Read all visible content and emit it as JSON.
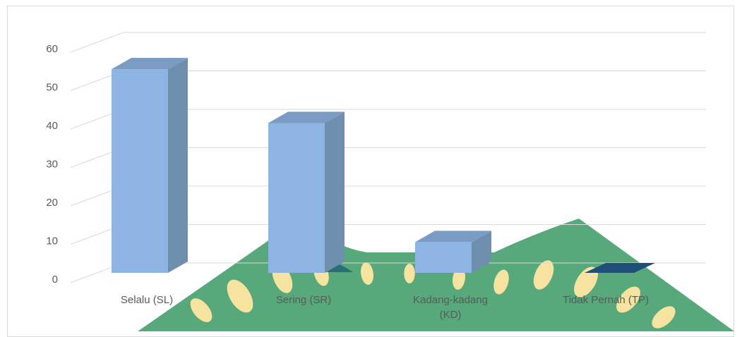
{
  "chart_data": {
    "type": "bar",
    "style": "3d-column",
    "categories": [
      "Selalu (SL)",
      "Sering (SR)",
      "Kadang-kadang (KD)",
      "Tidak Pernah (TP)"
    ],
    "category_lines": [
      [
        "Selalu (SL)"
      ],
      [
        "Sering (SR)"
      ],
      [
        "Kadang-kadang",
        "(KD)"
      ],
      [
        "Tidak Pernah (TP)"
      ]
    ],
    "values": [
      53,
      39,
      8,
      0
    ],
    "yticks": [
      "0",
      "10",
      "20",
      "30",
      "40",
      "50",
      "60"
    ],
    "ylim": [
      0,
      60
    ],
    "grid": true,
    "legend": "none",
    "colors": {
      "front": "#8db4e2",
      "side": "#6f8faf",
      "top": "#7a9cc4",
      "grid": "#d9d9d9"
    }
  },
  "watermark": {
    "description": "university emblem",
    "colors": {
      "green": "#3a9a64",
      "yellow": "#f7e3a0",
      "dark": "#1f5f78"
    }
  }
}
